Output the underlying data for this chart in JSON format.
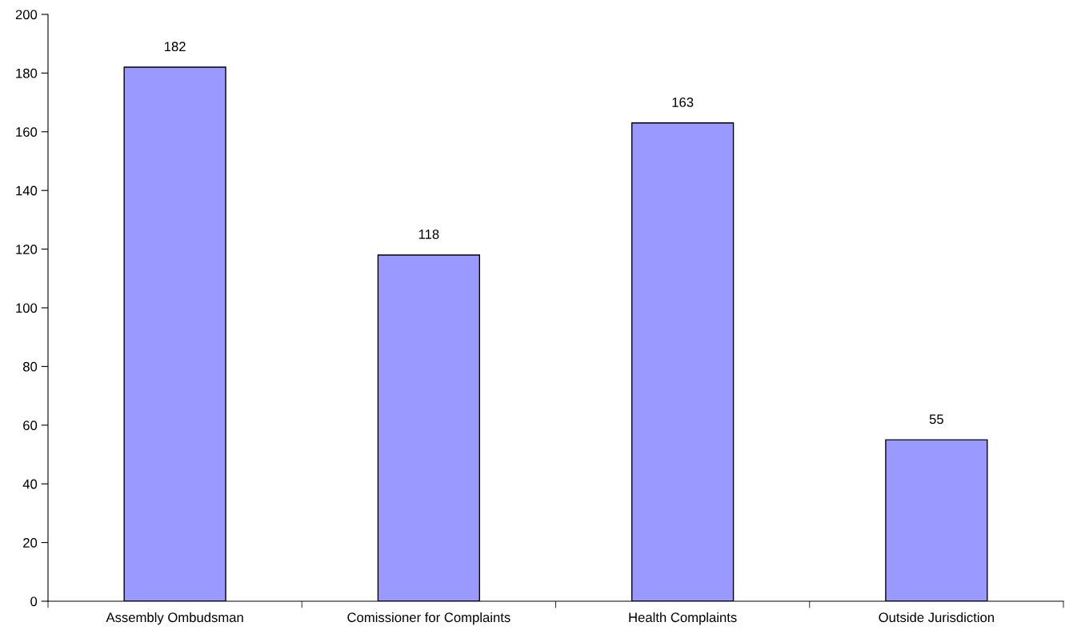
{
  "chart_data": {
    "type": "bar",
    "categories": [
      "Assembly Ombudsman",
      "Comissioner for Complaints",
      "Health Complaints",
      "Outside Jurisdiction"
    ],
    "values": [
      182,
      118,
      163,
      55
    ],
    "color": "#9999ff",
    "ylim": [
      0,
      200
    ],
    "yticks": [
      0,
      20,
      40,
      60,
      80,
      100,
      120,
      140,
      160,
      180,
      200
    ],
    "data_labels": true,
    "grid": false,
    "legend": false
  }
}
